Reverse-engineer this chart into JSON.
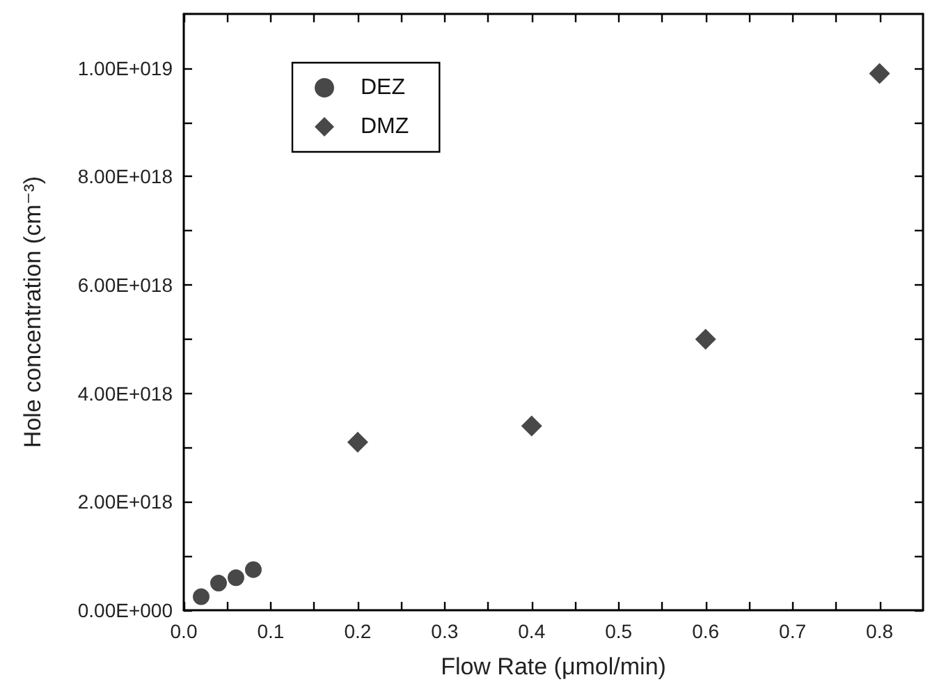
{
  "chart_data": {
    "type": "scatter",
    "xlabel": "Flow Rate (μmol/min)",
    "ylabel": "Hole concentration (cm⁻³)",
    "legend": "top left",
    "grid": false,
    "xlim": [
      0,
      0.85
    ],
    "xticks": [
      {
        "value": 0,
        "label": "0.0"
      },
      {
        "value": 0.05,
        "label": null
      },
      {
        "value": 0.1,
        "label": "0.1"
      },
      {
        "value": 0.15,
        "label": null
      },
      {
        "value": 0.2,
        "label": "0.2"
      },
      {
        "value": 0.25,
        "label": null
      },
      {
        "value": 0.3,
        "label": "0.3"
      },
      {
        "value": 0.35,
        "label": null
      },
      {
        "value": 0.4,
        "label": "0.4"
      },
      {
        "value": 0.45,
        "label": null
      },
      {
        "value": 0.5,
        "label": "0.5"
      },
      {
        "value": 0.55,
        "label": null
      },
      {
        "value": 0.6,
        "label": "0.6"
      },
      {
        "value": 0.65,
        "label": null
      },
      {
        "value": 0.7,
        "label": "0.7"
      },
      {
        "value": 0.75,
        "label": null
      },
      {
        "value": 0.8,
        "label": "0.8"
      }
    ],
    "ylim": [
      0,
      1.1e+19
    ],
    "yticks": [
      {
        "value": 0,
        "label": "0.00E+000"
      },
      {
        "value": 1e+18,
        "label": null
      },
      {
        "value": 2e+18,
        "label": "2.00E+018"
      },
      {
        "value": 3e+18,
        "label": null
      },
      {
        "value": 4e+18,
        "label": "4.00E+018"
      },
      {
        "value": 5e+18,
        "label": null
      },
      {
        "value": 6e+18,
        "label": "6.00E+018"
      },
      {
        "value": 7e+18,
        "label": null
      },
      {
        "value": 8e+18,
        "label": "8.00E+018"
      },
      {
        "value": 9e+18,
        "label": null
      },
      {
        "value": 1e+19,
        "label": "1.00E+019"
      }
    ],
    "series": [
      {
        "name": "DEZ",
        "color": "#1a1a1a",
        "marker": "circle",
        "x": [
          0.02,
          0.04,
          0.06,
          0.08
        ],
        "values": [
          2.5e+17,
          5e+17,
          6e+17,
          7.5e+17
        ]
      },
      {
        "name": "DMZ",
        "color": "#1a1a1a",
        "marker": "diamond",
        "x": [
          0.2,
          0.4,
          0.6,
          0.8
        ],
        "values": [
          3.1e+18,
          3.4e+18,
          5e+18,
          9.9e+18
        ]
      }
    ]
  }
}
